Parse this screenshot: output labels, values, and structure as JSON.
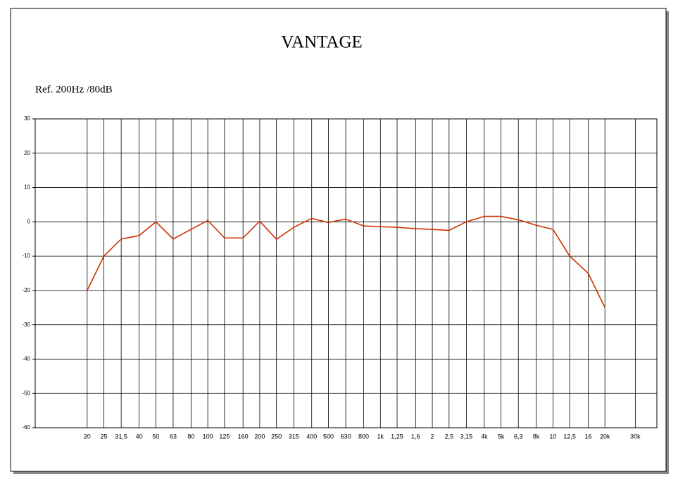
{
  "chart_data": {
    "type": "line",
    "title": "VANTAGE",
    "subtitle": "Ref. 200Hz /80dB",
    "x": [
      20,
      25,
      31.5,
      40,
      50,
      63,
      80,
      100,
      125,
      160,
      200,
      250,
      315,
      400,
      500,
      630,
      800,
      1000,
      1250,
      1600,
      2000,
      2500,
      3150,
      4000,
      5000,
      6300,
      8000,
      10000,
      12500,
      16000,
      20000
    ],
    "series": [
      {
        "color": "#cc3300",
        "values": [
          -20,
          -10,
          -5,
          -4,
          0,
          -5,
          -2.2,
          0.4,
          -4.7,
          -4.7,
          0.2,
          -5.1,
          -1.6,
          1,
          -0.2,
          0.8,
          -1.2,
          -1.4,
          -1.6,
          -2,
          -2.2,
          -2.5,
          0,
          1.6,
          1.6,
          0.6,
          -1,
          -2.2,
          -10,
          -15,
          -25
        ]
      }
    ],
    "xscale": "log",
    "xlim": [
      10,
      40000
    ],
    "xticks": [
      20,
      25,
      {
        "value": 31.5,
        "label": "31,5"
      },
      40,
      50,
      63,
      80,
      100,
      125,
      160,
      200,
      250,
      315,
      400,
      500,
      630,
      800,
      {
        "value": 1000,
        "label": "1k"
      },
      {
        "value": 1250,
        "label": "1,25"
      },
      {
        "value": 1600,
        "label": "1,6"
      },
      {
        "value": 2000,
        "label": "2"
      },
      {
        "value": 2500,
        "label": "2,5"
      },
      {
        "value": 3150,
        "label": "3,15"
      },
      {
        "value": 4000,
        "label": "4k"
      },
      {
        "value": 5000,
        "label": "5k"
      },
      {
        "value": 6300,
        "label": "6,3"
      },
      {
        "value": 8000,
        "label": "8k"
      },
      {
        "value": 10000,
        "label": "10"
      },
      {
        "value": 12500,
        "label": "12,5"
      },
      {
        "value": 16000,
        "label": "16"
      },
      {
        "value": 20000,
        "label": "20k"
      },
      {
        "value": 30000,
        "label": "30k"
      }
    ],
    "ylim": [
      -60,
      30
    ],
    "yticks": [
      30,
      20,
      10,
      0,
      -10,
      -20,
      -30,
      -40,
      -50,
      -60
    ],
    "grid": true
  }
}
